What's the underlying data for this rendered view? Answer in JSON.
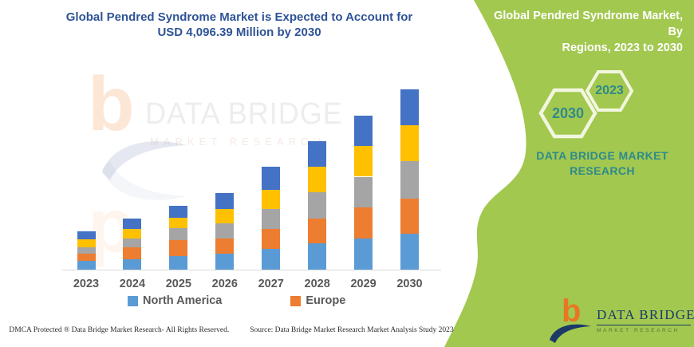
{
  "header": {
    "left_title_line1": "Global Pendred Syndrome Market is Expected to Account for",
    "left_title_line2": "USD 4,096.39 Million by 2030",
    "right_banner_line1": "Global Pendred Syndrome Market, By",
    "right_banner_line2": "Regions, 2023 to 2030"
  },
  "side_panel": {
    "hexagons": [
      {
        "label": "2030"
      },
      {
        "label": "2023"
      }
    ],
    "brand_line1": "DATA BRIDGE MARKET",
    "brand_line2": "RESEARCH",
    "logo": {
      "name": "DATA BRIDGE",
      "subtext": "MARKET RESEARCH"
    }
  },
  "watermark": {
    "glyph": "b",
    "line1": "DATA BRIDGE",
    "line2": "MARKET RESEARCH"
  },
  "chart_data": {
    "type": "bar",
    "stacked": true,
    "title": "Global Pendred Syndrome Market is Expected to Account for USD 4,096.39 Million by 2030",
    "unit": "USD Million",
    "categories": [
      "2023",
      "2024",
      "2025",
      "2026",
      "2027",
      "2028",
      "2029",
      "2030"
    ],
    "series": [
      {
        "name": "North America",
        "color": "#5B9BD5",
        "values": [
          194,
          235,
          302,
          355,
          476,
          598,
          706,
          824
        ]
      },
      {
        "name": "Europe",
        "color": "#ED7D31",
        "values": [
          163,
          272,
          362,
          351,
          453,
          561,
          712,
          797
        ]
      },
      {
        "name": "Unlabeled (gray)",
        "color": "#A5A5A5",
        "values": [
          158,
          199,
          272,
          344,
          453,
          603,
          694,
          846
        ]
      },
      {
        "name": "Unlabeled (yellow)",
        "color": "#FFC000",
        "values": [
          181,
          223,
          241,
          331,
          422,
          574,
          695,
          820
        ]
      },
      {
        "name": "Unlabeled (dark blue)",
        "color": "#4472C4",
        "values": [
          181,
          223,
          272,
          368,
          538,
          590,
          699,
          809.39
        ]
      }
    ],
    "totals": [
      877,
      1152,
      1449,
      1749,
      2342,
      2926,
      3506,
      4096.39
    ],
    "stated_final_value": "USD 4,096.39 Million by 2030",
    "ylim": [
      0,
      4300
    ],
    "grid": false,
    "y_axis_visible": false,
    "legend_position": "bottom",
    "legend_visible_entries": [
      "North America",
      "Europe"
    ],
    "legend_note": "Only two of the five stacked series are labeled in the visible legend"
  },
  "legend": [
    {
      "label": "North America",
      "color": "#5B9BD5"
    },
    {
      "label": "Europe",
      "color": "#ED7D31"
    }
  ],
  "footer": {
    "left": "DMCA Protected ® Data Bridge Market Research-  All Rights Reserved.",
    "right": "Source: Data Bridge Market Research  Market Analysis Study 2023"
  },
  "colors": {
    "title_blue": "#2F5496",
    "panel_green": "#A2C850",
    "teal_text": "#2F8A8A",
    "hexagon_outline": "#F2F6DF",
    "banner_text": "#FFFFFF",
    "axis_text_gray": "#595959",
    "axis_line_gray": "#D9D9D9",
    "logo_orange": "#E87725",
    "logo_navy": "#1C3968"
  }
}
